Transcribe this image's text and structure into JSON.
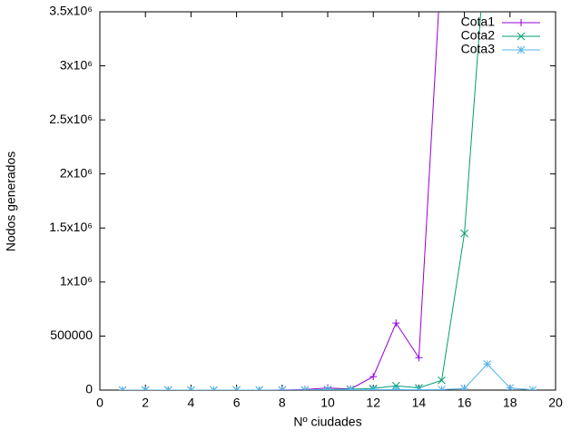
{
  "chart_data": {
    "type": "line",
    "xlabel": "Nº ciudades",
    "ylabel": "Nodos generados",
    "x": [
      1,
      2,
      3,
      4,
      5,
      6,
      7,
      8,
      9,
      10,
      11,
      12,
      13,
      14,
      15,
      16,
      17,
      18,
      19
    ],
    "series": [
      {
        "name": "Cota1",
        "color": "#9400d3",
        "marker": "plus",
        "values": [
          0,
          0,
          0,
          0,
          0,
          0,
          0,
          1000,
          5000,
          20000,
          10000,
          125000,
          620000,
          300000,
          4000000,
          null,
          null,
          null,
          null
        ]
      },
      {
        "name": "Cota2",
        "color": "#009e73",
        "marker": "cross",
        "values": [
          0,
          0,
          0,
          0,
          0,
          0,
          0,
          0,
          1000,
          5000,
          8000,
          15000,
          40000,
          20000,
          90000,
          1450000,
          4300000,
          null,
          null
        ]
      },
      {
        "name": "Cota3",
        "color": "#56b4e9",
        "marker": "star",
        "values": [
          0,
          0,
          0,
          0,
          0,
          0,
          0,
          0,
          0,
          1000,
          2000,
          3000,
          5000,
          3000,
          5000,
          15000,
          240000,
          20000,
          2000
        ]
      }
    ],
    "xlim": [
      0,
      20
    ],
    "xticks": [
      0,
      2,
      4,
      6,
      8,
      10,
      12,
      14,
      16,
      18,
      20
    ],
    "ylim": [
      0,
      3500000
    ],
    "yticks": [
      0,
      500000,
      {
        "value": 1000000,
        "label": "1x10⁶"
      },
      {
        "value": 1500000,
        "label": "1.5x10⁶"
      },
      {
        "value": 2000000,
        "label": "2x10⁶"
      },
      {
        "value": 2500000,
        "label": "2.5x10⁶"
      },
      {
        "value": 3000000,
        "label": "3x10⁶"
      },
      {
        "value": 3500000,
        "label": "3.5x10⁶"
      }
    ],
    "legend": "top-right"
  }
}
